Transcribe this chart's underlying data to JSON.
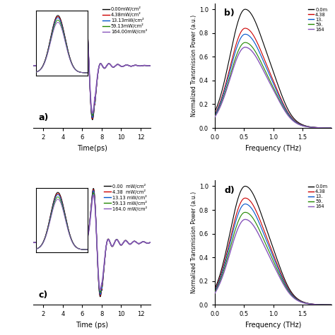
{
  "colors": [
    "black",
    "#cc0000",
    "#0055cc",
    "#228800",
    "#8855bb"
  ],
  "labels_a": [
    "0.00mW/cm²",
    "4.38mW/cm²",
    "13.13mW/cm²",
    "59.13mW/cm²",
    "164.00mW/cm²"
  ],
  "labels_cd": [
    "0.00  mW/cm²",
    "4.38  mW/cm²",
    "13.13 mW/cm²",
    "59.13 mW/cm²",
    "164.0 mW/cm²"
  ],
  "panel_labels": [
    "a)",
    "b)",
    "c)",
    "d)"
  ],
  "freq_peaks_b": [
    1.0,
    0.84,
    0.79,
    0.72,
    0.68
  ],
  "freq_peaks_d": [
    1.0,
    0.9,
    0.85,
    0.78,
    0.72
  ],
  "time_amplitudes": [
    1.0,
    0.98,
    0.96,
    0.92,
    0.88
  ]
}
